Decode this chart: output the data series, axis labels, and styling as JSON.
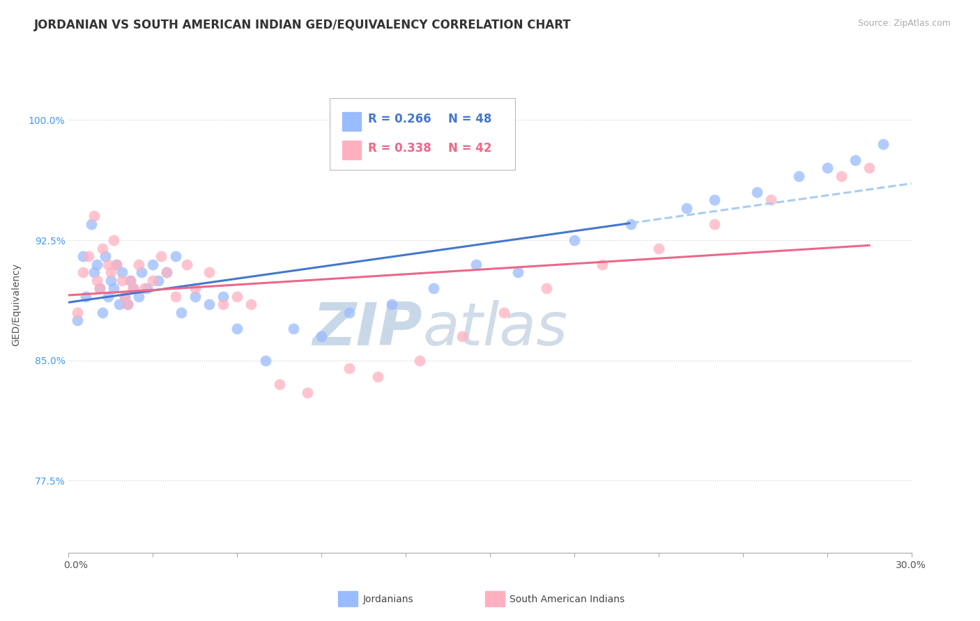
{
  "title": "JORDANIAN VS SOUTH AMERICAN INDIAN GED/EQUIVALENCY CORRELATION CHART",
  "source": "Source: ZipAtlas.com",
  "ylabel": "GED/Equivalency",
  "y_ticks": [
    77.5,
    85.0,
    92.5,
    100.0
  ],
  "y_tick_labels": [
    "77.5%",
    "85.0%",
    "92.5%",
    "100.0%"
  ],
  "xmin": 0.0,
  "xmax": 30.0,
  "ymin": 73.0,
  "ymax": 104.0,
  "legend_R1": "R = 0.266",
  "legend_N1": "N = 48",
  "legend_R2": "R = 0.338",
  "legend_N2": "N = 42",
  "blue_color": "#99BBFF",
  "pink_color": "#FFB0C0",
  "blue_line_color": "#4477CC",
  "pink_line_color": "#EE6688",
  "dashed_line_color": "#AACCEE",
  "watermark_zip": "ZIP",
  "watermark_atlas": "atlas",
  "title_fontsize": 12,
  "axis_label_fontsize": 10,
  "tick_fontsize": 10,
  "blue_x": [
    0.3,
    0.5,
    0.6,
    0.8,
    0.9,
    1.0,
    1.1,
    1.2,
    1.3,
    1.4,
    1.5,
    1.6,
    1.7,
    1.8,
    1.9,
    2.0,
    2.1,
    2.2,
    2.3,
    2.5,
    2.6,
    2.8,
    3.0,
    3.2,
    3.5,
    3.8,
    4.0,
    4.5,
    5.0,
    5.5,
    6.0,
    7.0,
    8.0,
    9.0,
    10.0,
    11.5,
    13.0,
    14.5,
    16.0,
    18.0,
    20.0,
    22.0,
    23.0,
    24.5,
    26.0,
    27.0,
    28.0,
    29.0
  ],
  "blue_y": [
    87.5,
    91.5,
    89.0,
    93.5,
    90.5,
    91.0,
    89.5,
    88.0,
    91.5,
    89.0,
    90.0,
    89.5,
    91.0,
    88.5,
    90.5,
    89.0,
    88.5,
    90.0,
    89.5,
    89.0,
    90.5,
    89.5,
    91.0,
    90.0,
    90.5,
    91.5,
    88.0,
    89.0,
    88.5,
    89.0,
    87.0,
    85.0,
    87.0,
    86.5,
    88.0,
    88.5,
    89.5,
    91.0,
    90.5,
    92.5,
    93.5,
    94.5,
    95.0,
    95.5,
    96.5,
    97.0,
    97.5,
    98.5
  ],
  "pink_x": [
    0.3,
    0.5,
    0.7,
    0.9,
    1.0,
    1.1,
    1.2,
    1.4,
    1.5,
    1.6,
    1.7,
    1.9,
    2.0,
    2.1,
    2.2,
    2.3,
    2.5,
    2.7,
    3.0,
    3.3,
    3.5,
    3.8,
    4.2,
    4.5,
    5.0,
    5.5,
    6.0,
    6.5,
    7.5,
    8.5,
    10.0,
    11.0,
    12.5,
    14.0,
    15.5,
    17.0,
    19.0,
    21.0,
    23.0,
    25.0,
    27.5,
    28.5
  ],
  "pink_y": [
    88.0,
    90.5,
    91.5,
    94.0,
    90.0,
    89.5,
    92.0,
    91.0,
    90.5,
    92.5,
    91.0,
    90.0,
    89.0,
    88.5,
    90.0,
    89.5,
    91.0,
    89.5,
    90.0,
    91.5,
    90.5,
    89.0,
    91.0,
    89.5,
    90.5,
    88.5,
    89.0,
    88.5,
    83.5,
    83.0,
    84.5,
    84.0,
    85.0,
    86.5,
    88.0,
    89.5,
    91.0,
    92.0,
    93.5,
    95.0,
    96.5,
    97.0
  ]
}
